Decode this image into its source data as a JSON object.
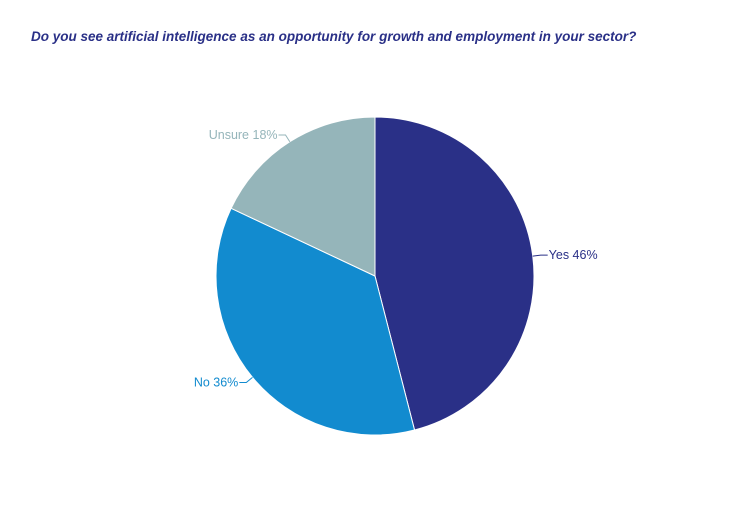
{
  "chart_data": {
    "type": "pie",
    "title": "Do you see artificial intelligence as an opportunity for growth and employment in your sector?",
    "slices": [
      {
        "label": "Yes 46%",
        "name": "Yes",
        "value": 46,
        "color": "#2a3087"
      },
      {
        "label": "No 36%",
        "name": "No",
        "value": 36,
        "color": "#128bcf"
      },
      {
        "label": "Unsure 18%",
        "name": "Unsure",
        "value": 18,
        "color": "#95b5ba"
      }
    ],
    "start_angle": "12 o'clock",
    "direction": "clockwise",
    "legend": "none"
  }
}
